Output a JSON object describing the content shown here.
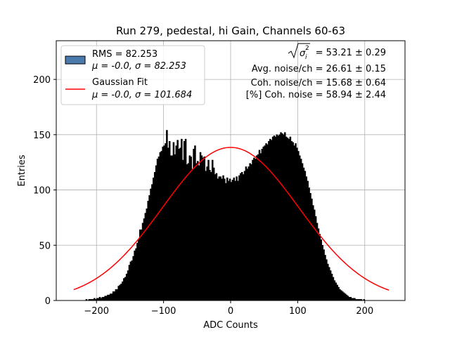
{
  "chart_data": {
    "type": "bar",
    "title": "Run 279, pedestal, hi Gain, Channels 60-63",
    "xlabel": "ADC Counts",
    "ylabel": "Entries",
    "xlim": [
      -260,
      260
    ],
    "ylim": [
      0,
      235
    ],
    "grid": true,
    "x_ticks": [
      -200,
      -100,
      0,
      100,
      200
    ],
    "x_tick_labels": [
      "−200",
      "−100",
      "0",
      "100",
      "200"
    ],
    "y_ticks": [
      0,
      50,
      100,
      150,
      200
    ],
    "y_tick_labels": [
      "0",
      "50",
      "100",
      "150",
      "200"
    ],
    "histogram": {
      "name": "RMS = 82.253",
      "stats_label": "μ = -0.0, σ = 82.253",
      "color": "#000000",
      "legend_patch_color": "#4a7aab",
      "bin_width": 2,
      "bin_starts": [
        -236,
        -234,
        -232,
        -230,
        -228,
        -226,
        -224,
        -222,
        -220,
        -218,
        -216,
        -214,
        -212,
        -210,
        -208,
        -206,
        -204,
        -202,
        -200,
        -198,
        -196,
        -194,
        -192,
        -190,
        -188,
        -186,
        -184,
        -182,
        -180,
        -178,
        -176,
        -174,
        -172,
        -170,
        -168,
        -166,
        -164,
        -162,
        -160,
        -158,
        -156,
        -154,
        -152,
        -150,
        -148,
        -146,
        -144,
        -142,
        -140,
        -138,
        -136,
        -134,
        -132,
        -130,
        -128,
        -126,
        -124,
        -122,
        -120,
        -118,
        -116,
        -114,
        -112,
        -110,
        -108,
        -106,
        -104,
        -102,
        -100,
        -98,
        -96,
        -94,
        -92,
        -90,
        -88,
        -86,
        -84,
        -82,
        -80,
        -78,
        -76,
        -74,
        -72,
        -70,
        -68,
        -66,
        -64,
        -62,
        -60,
        -58,
        -56,
        -54,
        -52,
        -50,
        -48,
        -46,
        -44,
        -42,
        -40,
        -38,
        -36,
        -34,
        -32,
        -30,
        -28,
        -26,
        -24,
        -22,
        -20,
        -18,
        -16,
        -14,
        -12,
        -10,
        -8,
        -6,
        -4,
        -2,
        0,
        2,
        4,
        6,
        8,
        10,
        12,
        14,
        16,
        18,
        20,
        22,
        24,
        26,
        28,
        30,
        32,
        34,
        36,
        38,
        40,
        42,
        44,
        46,
        48,
        50,
        52,
        54,
        56,
        58,
        60,
        62,
        64,
        66,
        68,
        70,
        72,
        74,
        76,
        78,
        80,
        82,
        84,
        86,
        88,
        90,
        92,
        94,
        96,
        98,
        100,
        102,
        104,
        106,
        108,
        110,
        112,
        114,
        116,
        118,
        120,
        122,
        124,
        126,
        128,
        130,
        132,
        134,
        136,
        138,
        140,
        142,
        144,
        146,
        148,
        150,
        152,
        154,
        156,
        158,
        160,
        162,
        164,
        166,
        168,
        170,
        172,
        174,
        176,
        178,
        180,
        182,
        184,
        186,
        188,
        190,
        192,
        194,
        196,
        198,
        200,
        202,
        204,
        206,
        208,
        210,
        212,
        214,
        216,
        218,
        220,
        222,
        224,
        226,
        228,
        230,
        232,
        234
      ],
      "counts": [
        0,
        0,
        0,
        0,
        0,
        0,
        0,
        0,
        0,
        0,
        1,
        0,
        1,
        1,
        1,
        1,
        2,
        1,
        2,
        2,
        3,
        2,
        3,
        3,
        4,
        4,
        5,
        5,
        6,
        6,
        8,
        8,
        10,
        10,
        13,
        14,
        15,
        17,
        20,
        21,
        24,
        27,
        32,
        35,
        36,
        40,
        45,
        47,
        52,
        55,
        64,
        64,
        70,
        74,
        79,
        83,
        90,
        95,
        101,
        105,
        111,
        116,
        122,
        128,
        130,
        134,
        135,
        139,
        140,
        142,
        154,
        138,
        144,
        131,
        131,
        143,
        132,
        140,
        145,
        137,
        138,
        146,
        127,
        144,
        146,
        123,
        124,
        131,
        130,
        119,
        137,
        140,
        124,
        126,
        122,
        134,
        131,
        129,
        130,
        117,
        121,
        127,
        118,
        116,
        127,
        120,
        114,
        115,
        110,
        112,
        112,
        110,
        113,
        110,
        106,
        111,
        108,
        110,
        107,
        109,
        111,
        108,
        112,
        108,
        113,
        115,
        116,
        114,
        117,
        121,
        119,
        121,
        124,
        123,
        127,
        129,
        128,
        131,
        132,
        136,
        133,
        137,
        139,
        140,
        142,
        141,
        144,
        146,
        145,
        148,
        149,
        148,
        150,
        149,
        150,
        152,
        151,
        150,
        152,
        148,
        147,
        146,
        148,
        144,
        143,
        140,
        142,
        138,
        135,
        131,
        128,
        124,
        120,
        117,
        112,
        108,
        102,
        97,
        92,
        86,
        82,
        76,
        70,
        65,
        60,
        55,
        50,
        46,
        41,
        37,
        33,
        30,
        27,
        24,
        21,
        18,
        16,
        14,
        12,
        10,
        9,
        8,
        7,
        6,
        5,
        4,
        3,
        3,
        2,
        2,
        2,
        1,
        1,
        1,
        1,
        1,
        0,
        1,
        0,
        0,
        0,
        0,
        0,
        0,
        0,
        0,
        0,
        0,
        0,
        0,
        0,
        0
      ]
    },
    "fit": {
      "name": "Gaussian Fit",
      "stats_label": "μ = -0.0, σ = 101.684",
      "color": "#ff0000",
      "mu": 0,
      "sigma": 101.684,
      "amplitude": 138.5,
      "x_range": [
        -234,
        236
      ]
    },
    "legend_location": "top-left",
    "annotations": [
      {
        "prefix": "",
        "suffix": " = 53.21 ± 0.29",
        "formula": "sqrt-sigma-i-squared"
      },
      {
        "prefix": "Avg. noise/ch = 26.61 ± 0.15",
        "suffix": "",
        "formula": ""
      },
      {
        "prefix": "Coh. noise/ch = 15.68 ± 0.64",
        "suffix": "",
        "formula": ""
      },
      {
        "prefix": "[%] Coh. noise = 58.94 ± 2.44",
        "suffix": "",
        "formula": ""
      }
    ]
  }
}
